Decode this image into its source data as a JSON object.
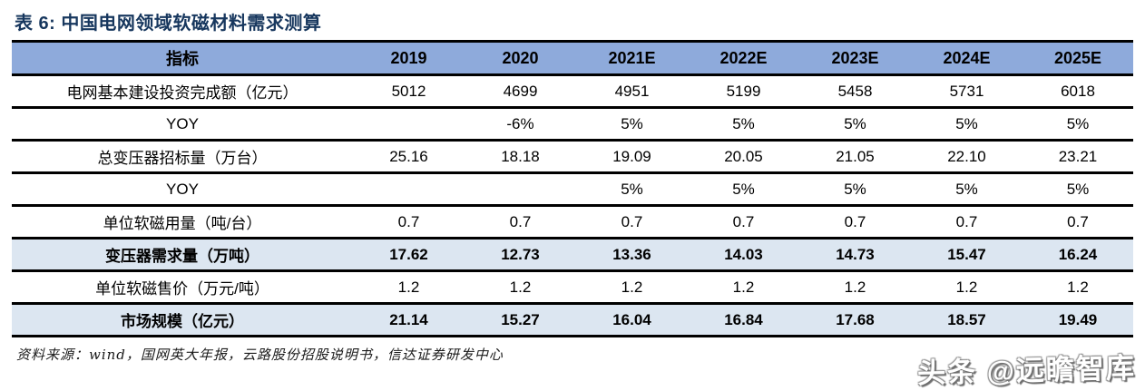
{
  "title": "表 6:  中国电网领域软磁材料需求测算",
  "colors": {
    "header_bg": "#8EAADB",
    "highlight_bg": "#DCE6F1",
    "title_color": "#17375E",
    "border": "#000000"
  },
  "table": {
    "columns": [
      "指标",
      "2019",
      "2020",
      "2021E",
      "2022E",
      "2023E",
      "2024E",
      "2025E"
    ],
    "rows": [
      {
        "label": "电网基本建设投资完成额（亿元）",
        "values": [
          "5012",
          "4699",
          "4951",
          "5199",
          "5458",
          "5731",
          "6018"
        ],
        "highlight": false
      },
      {
        "label": "YOY",
        "values": [
          "",
          "-6%",
          "5%",
          "5%",
          "5%",
          "5%",
          "5%"
        ],
        "highlight": false
      },
      {
        "label": "总变压器招标量（万台）",
        "values": [
          "25.16",
          "18.18",
          "19.09",
          "20.05",
          "21.05",
          "22.10",
          "23.21"
        ],
        "highlight": false
      },
      {
        "label": "YOY",
        "values": [
          "",
          "",
          "5%",
          "5%",
          "5%",
          "5%",
          "5%"
        ],
        "highlight": false
      },
      {
        "label": "单位软磁用量（吨/台）",
        "values": [
          "0.7",
          "0.7",
          "0.7",
          "0.7",
          "0.7",
          "0.7",
          "0.7"
        ],
        "highlight": false
      },
      {
        "label": "变压器需求量（万吨）",
        "values": [
          "17.62",
          "12.73",
          "13.36",
          "14.03",
          "14.73",
          "15.47",
          "16.24"
        ],
        "highlight": true
      },
      {
        "label": "单位软磁售价（万元/吨）",
        "values": [
          "1.2",
          "1.2",
          "1.2",
          "1.2",
          "1.2",
          "1.2",
          "1.2"
        ],
        "highlight": false
      },
      {
        "label": "市场规模（亿元）",
        "values": [
          "21.14",
          "15.27",
          "16.04",
          "16.84",
          "17.68",
          "18.57",
          "19.49"
        ],
        "highlight": true
      }
    ]
  },
  "footer": {
    "source": "资料来源：wind，国网英大年报，云路股份招股说明书，信达证券研发中心"
  },
  "watermark": "头条 @远瞻智库"
}
